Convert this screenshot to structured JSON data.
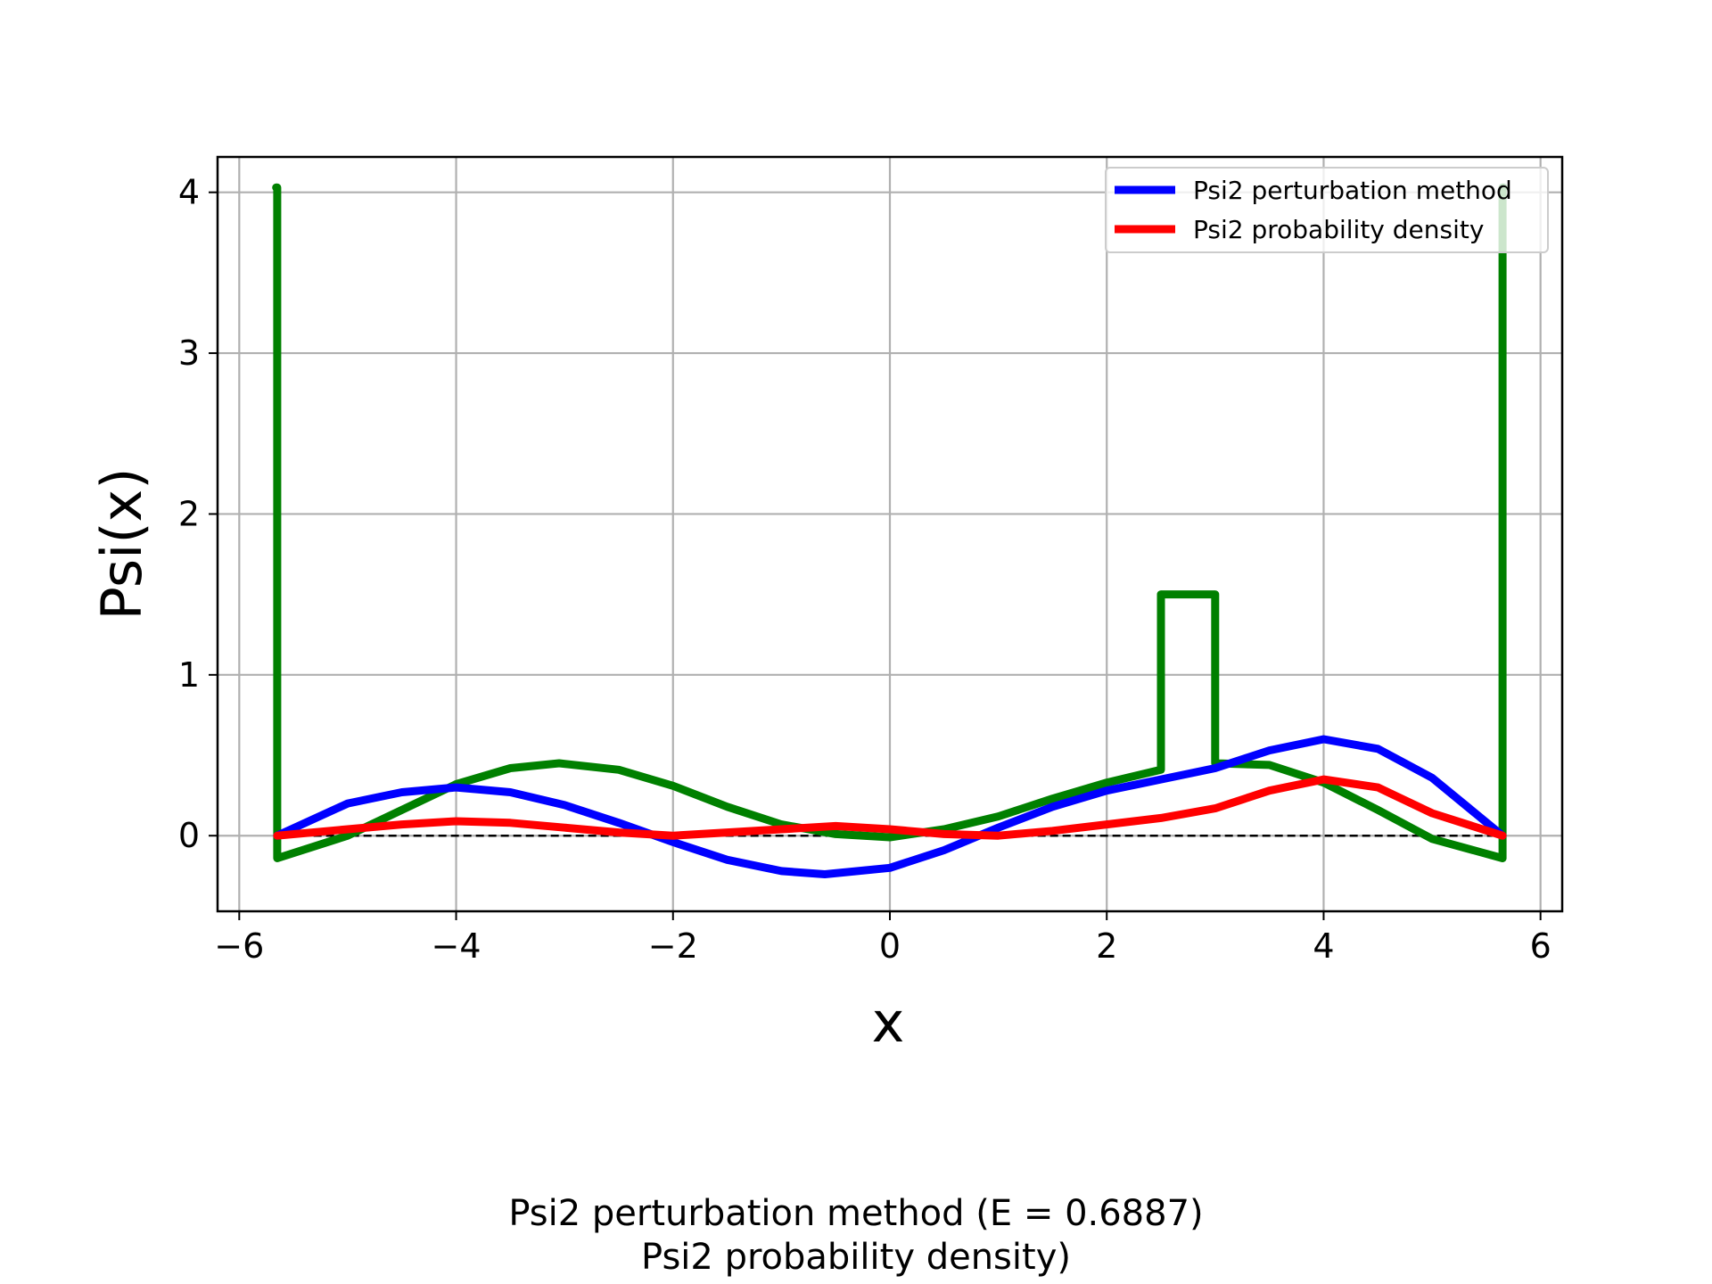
{
  "chart_data": {
    "type": "line",
    "xlabel": "x",
    "ylabel": "Psi(x)",
    "xlim": [
      -6.2,
      6.2
    ],
    "ylim": [
      -0.47,
      4.22
    ],
    "xticks": [
      -6,
      -4,
      -2,
      0,
      2,
      4,
      6
    ],
    "yticks": [
      0,
      1,
      2,
      3,
      4
    ],
    "xtick_labels": [
      "−6",
      "−4",
      "−2",
      "0",
      "2",
      "4",
      "6"
    ],
    "ytick_labels": [
      "0",
      "1",
      "2",
      "3",
      "4"
    ],
    "grid": true,
    "legend_position": "top-right",
    "zero_line": {
      "y": 0,
      "style": "dashed",
      "color": "#000000"
    },
    "series": [
      {
        "name": "",
        "color": "#008000",
        "x": [
          -5.66,
          -5.65,
          -5.65,
          -5.0,
          -4.0,
          -3.5,
          -3.05,
          -2.5,
          -2.0,
          -1.5,
          -1.0,
          -0.5,
          0.0,
          0.5,
          1.0,
          1.5,
          2.0,
          2.5,
          2.5,
          3.0,
          3.0,
          3.5,
          4.0,
          4.5,
          5.0,
          5.65,
          5.65,
          5.66
        ],
        "y": [
          4.03,
          4.03,
          -0.14,
          0.0,
          0.32,
          0.42,
          0.45,
          0.41,
          0.31,
          0.18,
          0.07,
          0.01,
          -0.01,
          0.04,
          0.12,
          0.23,
          0.33,
          0.41,
          1.5,
          1.5,
          0.45,
          0.44,
          0.33,
          0.16,
          -0.02,
          -0.14,
          4.03,
          4.03
        ]
      },
      {
        "name": "Psi2 perturbation method",
        "color": "#0000ff",
        "x": [
          -5.65,
          -5.0,
          -4.5,
          -4.0,
          -3.5,
          -3.0,
          -2.5,
          -2.0,
          -1.5,
          -1.0,
          -0.6,
          0.0,
          0.5,
          1.0,
          1.5,
          2.0,
          2.5,
          3.0,
          3.5,
          4.0,
          4.5,
          5.0,
          5.65
        ],
        "y": [
          0.0,
          0.2,
          0.27,
          0.3,
          0.27,
          0.19,
          0.08,
          -0.04,
          -0.15,
          -0.22,
          -0.24,
          -0.2,
          -0.09,
          0.05,
          0.18,
          0.28,
          0.35,
          0.42,
          0.53,
          0.6,
          0.54,
          0.36,
          0.0
        ]
      },
      {
        "name": "Psi2 probability density",
        "color": "#ff0000",
        "x": [
          -5.65,
          -5.0,
          -4.5,
          -4.0,
          -3.5,
          -3.0,
          -2.5,
          -2.0,
          -1.5,
          -1.0,
          -0.5,
          0.0,
          0.5,
          1.0,
          1.5,
          2.0,
          2.5,
          3.0,
          3.5,
          4.0,
          4.5,
          5.0,
          5.65
        ],
        "y": [
          0.0,
          0.04,
          0.07,
          0.09,
          0.08,
          0.05,
          0.02,
          0.0,
          0.02,
          0.04,
          0.06,
          0.04,
          0.01,
          0.0,
          0.03,
          0.07,
          0.11,
          0.17,
          0.28,
          0.35,
          0.3,
          0.14,
          0.0
        ]
      }
    ]
  },
  "caption": {
    "line1": "Psi2 perturbation method (E = 0.6887)",
    "line2": "Psi2 probability density)"
  }
}
